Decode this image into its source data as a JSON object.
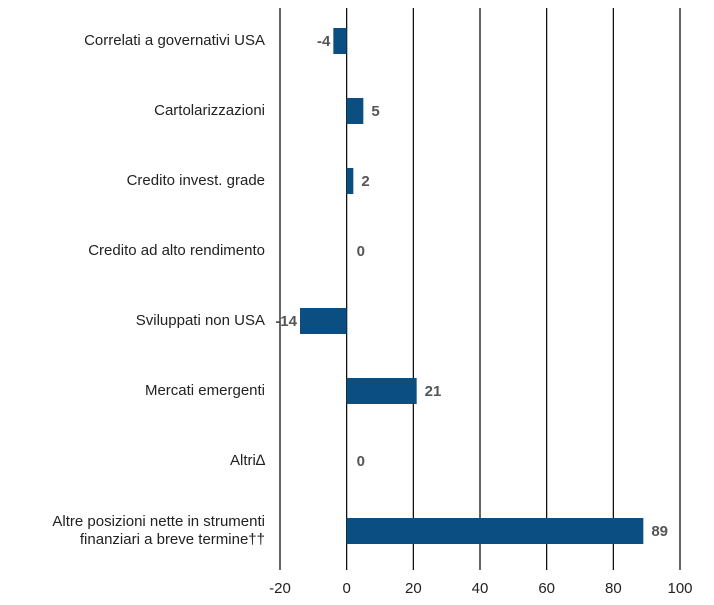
{
  "chart_data": {
    "type": "bar",
    "orientation": "horizontal",
    "categories": [
      "Correlati a governativi USA",
      "Cartolarizzazioni",
      "Credito invest. grade",
      "Credito ad alto rendimento",
      "Sviluppati non USA",
      "Mercati emergenti",
      "Altri∆",
      "Altre posizioni nette in strumenti\nfinanziari a breve termine††"
    ],
    "values": [
      -4,
      5,
      2,
      0,
      -14,
      21,
      0,
      89
    ],
    "color": "#0b4f82",
    "xlim": [
      -20,
      100
    ],
    "xticks": [
      -20,
      0,
      20,
      40,
      60,
      80,
      100
    ],
    "grid": true
  }
}
